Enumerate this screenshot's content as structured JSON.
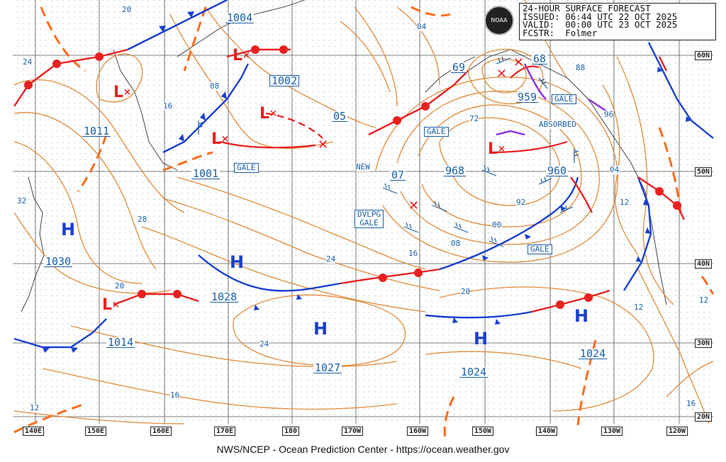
{
  "header": {
    "line1": "24-HOUR SURFACE FORECAST",
    "line2": "ISSUED: 06:44 UTC 22 OCT 2025",
    "line3": "VALID:  00:00 UTC 23 OCT 2025",
    "line4": "FCSTR:  Folmer"
  },
  "logo_text": "NOAA",
  "footer": "NWS/NCEP - Ocean Prediction Center - https://ocean.weather.gov",
  "colors": {
    "isobar": "#e08a3a",
    "warm": "#e82020",
    "cold": "#1a3fd0",
    "text": "#1a5fa8",
    "occluded": "#8a2be2"
  },
  "longitudes": [
    "140E",
    "150E",
    "160E",
    "170E",
    "180",
    "170W",
    "160W",
    "150W",
    "140W",
    "130W",
    "120W"
  ],
  "latitudes": [
    "60N",
    "50N",
    "40N",
    "30N",
    "20N"
  ],
  "pressure_centers": [
    {
      "label": "1004",
      "style": "und"
    },
    {
      "label": "1002",
      "style": "box"
    },
    {
      "label": "1011",
      "style": "und"
    },
    {
      "label": "1001",
      "style": "und"
    },
    {
      "label": "05",
      "style": "und"
    },
    {
      "label": "07",
      "style": "und"
    },
    {
      "label": "968",
      "style": "und"
    },
    {
      "label": "960",
      "style": "und"
    },
    {
      "label": "959",
      "style": "und"
    },
    {
      "label": "69",
      "style": "und"
    },
    {
      "label": "68",
      "style": "und"
    },
    {
      "label": "1030",
      "style": "und"
    },
    {
      "label": "1028",
      "style": "und"
    },
    {
      "label": "1027",
      "style": "und"
    },
    {
      "label": "1014",
      "style": "und"
    },
    {
      "label": "1024",
      "style": "und"
    },
    {
      "label": "1024",
      "style": "und"
    }
  ],
  "isobar_labels": [
    "20",
    "24",
    "08",
    "16",
    "32",
    "28",
    "84",
    "88",
    "72",
    "96",
    "04",
    "12",
    "92",
    "00",
    "08",
    "16",
    "24",
    "20",
    "20",
    "12",
    "24",
    "16",
    "12",
    "16",
    "12"
  ],
  "text_labels": [
    "GALE",
    "GALE",
    "GALE",
    "GALE",
    "DVLPG\nGALE",
    "NEW",
    "ABSORBED"
  ],
  "highs": [
    "H",
    "H",
    "H",
    "H",
    "H"
  ],
  "lows": [
    "L",
    "L",
    "L",
    "L",
    "L",
    "L"
  ]
}
